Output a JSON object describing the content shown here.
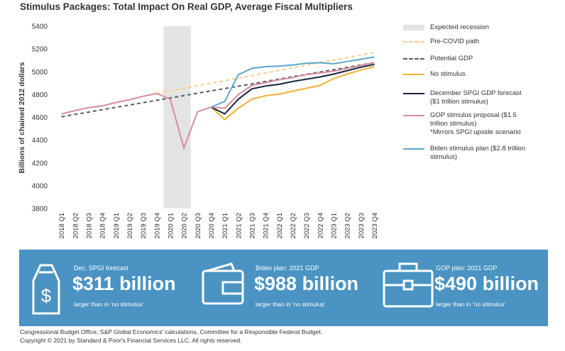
{
  "chart_data": {
    "type": "line",
    "title": "Stimulus Packages: Total Impact On Real GDP, Average Fiscal Multipliers",
    "y_label": "Billions of chained 2012 dollars",
    "categories": [
      "2018 Q1",
      "2018 Q2",
      "2018 Q3",
      "2018 Q4",
      "2019 Q1",
      "2019 Q2",
      "2019 Q3",
      "2019 Q4",
      "2020 Q1",
      "2020 Q2",
      "2020 Q3",
      "2020 Q4",
      "2021 Q1",
      "2021 Q2",
      "2021 Q3",
      "2021 Q4",
      "2022 Q1",
      "2022 Q2",
      "2022 Q3",
      "2022 Q4",
      "2023 Q1",
      "2023 Q2",
      "2023 Q3",
      "2023 Q4"
    ],
    "ylim": [
      3800,
      5400
    ],
    "yticks": [
      3800,
      4000,
      4200,
      4400,
      4600,
      4800,
      5000,
      5200,
      5400
    ],
    "grid": false,
    "recession": {
      "name": "Expected recession",
      "start": "2020 Q1",
      "end": "2020 Q2",
      "color": "#e4e4e4"
    },
    "series": [
      {
        "name": "Pre-COVID path",
        "color": "#f8cf8c",
        "dashed": true,
        "values": [
          null,
          null,
          null,
          null,
          null,
          null,
          null,
          4810,
          4832,
          4855,
          4877,
          4900,
          4922,
          4945,
          4967,
          4990,
          5012,
          5035,
          5057,
          5080,
          5102,
          5125,
          5147,
          5170
        ]
      },
      {
        "name": "Potential GDP",
        "color": "#555b66",
        "dashed": true,
        "values": [
          4605,
          4626,
          4646,
          4667,
          4688,
          4708,
          4729,
          4750,
          4770,
          4791,
          4812,
          4832,
          4853,
          4874,
          4894,
          4915,
          4936,
          4956,
          4977,
          4998,
          5018,
          5039,
          5060,
          5080
        ]
      },
      {
        "name": "No stimulus",
        "color": "#f0b134",
        "dashed": false,
        "values": [
          null,
          null,
          null,
          null,
          null,
          null,
          null,
          null,
          null,
          null,
          null,
          4690,
          4580,
          4680,
          4760,
          4790,
          4805,
          4830,
          4855,
          4880,
          4940,
          4980,
          5015,
          5045
        ]
      },
      {
        "name": "December SPGI GDP forecast ($1 trillion stimulus)",
        "color": "#15233f",
        "dashed": false,
        "values": [
          null,
          null,
          null,
          null,
          null,
          null,
          null,
          null,
          null,
          null,
          null,
          4690,
          4630,
          4760,
          4850,
          4875,
          4890,
          4915,
          4935,
          4955,
          4980,
          5010,
          5040,
          5065
        ]
      },
      {
        "name": "GOP stimulus proposal ($1.5 trillion stimulus)",
        "note": "*Mirrors SPGI upside scenario",
        "color": "#d98c9b",
        "dashed": false,
        "values": [
          4630,
          4660,
          4685,
          4700,
          4730,
          4755,
          4785,
          4810,
          4760,
          4330,
          4650,
          4690,
          4680,
          4800,
          4880,
          4905,
          4930,
          4950,
          4975,
          4990,
          5005,
          5030,
          5055,
          5080
        ]
      },
      {
        "name": "Biden stimulus plan ($2.8 trillion stimulus)",
        "color": "#5ba7c9",
        "dashed": false,
        "values": [
          null,
          null,
          null,
          null,
          null,
          null,
          null,
          null,
          null,
          null,
          null,
          4690,
          4740,
          4975,
          5030,
          5045,
          5050,
          5060,
          5075,
          5080,
          5070,
          5090,
          5110,
          5130
        ]
      }
    ]
  },
  "highlights": [
    {
      "label": "Dec. SPGI forecast",
      "value": "$311 billion",
      "note": "larger than in 'no stimulus'"
    },
    {
      "label": "Biden plan: 2021 GDP",
      "value": "$988 billion",
      "note": "larger than in 'no stimulus'"
    },
    {
      "label": "GOP plan: 2021 GDP",
      "value": "$490 billion",
      "note": "larger than in 'no stimulus'"
    }
  ],
  "footer": [
    "Congressional Budget Office, S&P Global Economics' calculations, Committee for a Responsible Federal Budget.",
    "Copyright © 2021 by Standard & Poor's Financial Services LLC. All rights reserved."
  ]
}
